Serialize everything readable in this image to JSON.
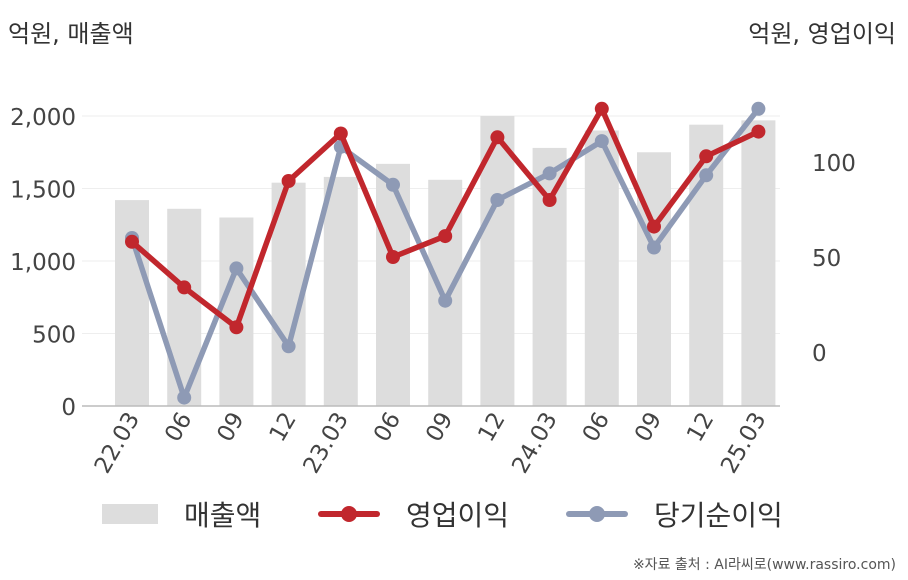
{
  "units": {
    "left": "억원, 매출액",
    "right": "억원, 영업이익"
  },
  "legend": {
    "revenue": "매출액",
    "operating": "영업이익",
    "net": "당기순이익"
  },
  "source": "※자료 출처 : AI라씨로(www.rassiro.com)",
  "colors": {
    "bars": "#dddddd",
    "operating": "#c1272d",
    "net": "#8e9ab5",
    "grid": "#eeeeee",
    "axis": "#bbbbbb"
  },
  "chart_data": {
    "type": "bar+line",
    "categories": [
      "22.03",
      "06",
      "09",
      "12",
      "23.03",
      "06",
      "09",
      "12",
      "24.03",
      "06",
      "09",
      "12",
      "25.03"
    ],
    "left_axis": {
      "ticks": [
        0,
        500,
        1000,
        1500,
        2000
      ],
      "tick_labels": [
        "0",
        "500",
        "1,000",
        "1,500",
        "2,000"
      ]
    },
    "right_axis": {
      "ticks": [
        0,
        50,
        100
      ],
      "tick_labels": [
        "0",
        "50",
        "100"
      ]
    },
    "series": [
      {
        "name": "매출액",
        "type": "bar",
        "axis": "left",
        "values": [
          1420,
          1360,
          1300,
          1540,
          1580,
          1670,
          1560,
          2000,
          1780,
          1900,
          1750,
          1940,
          1970
        ]
      },
      {
        "name": "영업이익",
        "type": "line",
        "axis": "right",
        "values": [
          58,
          34,
          13,
          90,
          115,
          50,
          61,
          113,
          80,
          128,
          66,
          103,
          116
        ]
      },
      {
        "name": "당기순이익",
        "type": "line",
        "axis": "right",
        "values": [
          60,
          -24,
          44,
          3,
          108,
          88,
          27,
          80,
          94,
          111,
          55,
          93,
          128
        ]
      }
    ]
  }
}
